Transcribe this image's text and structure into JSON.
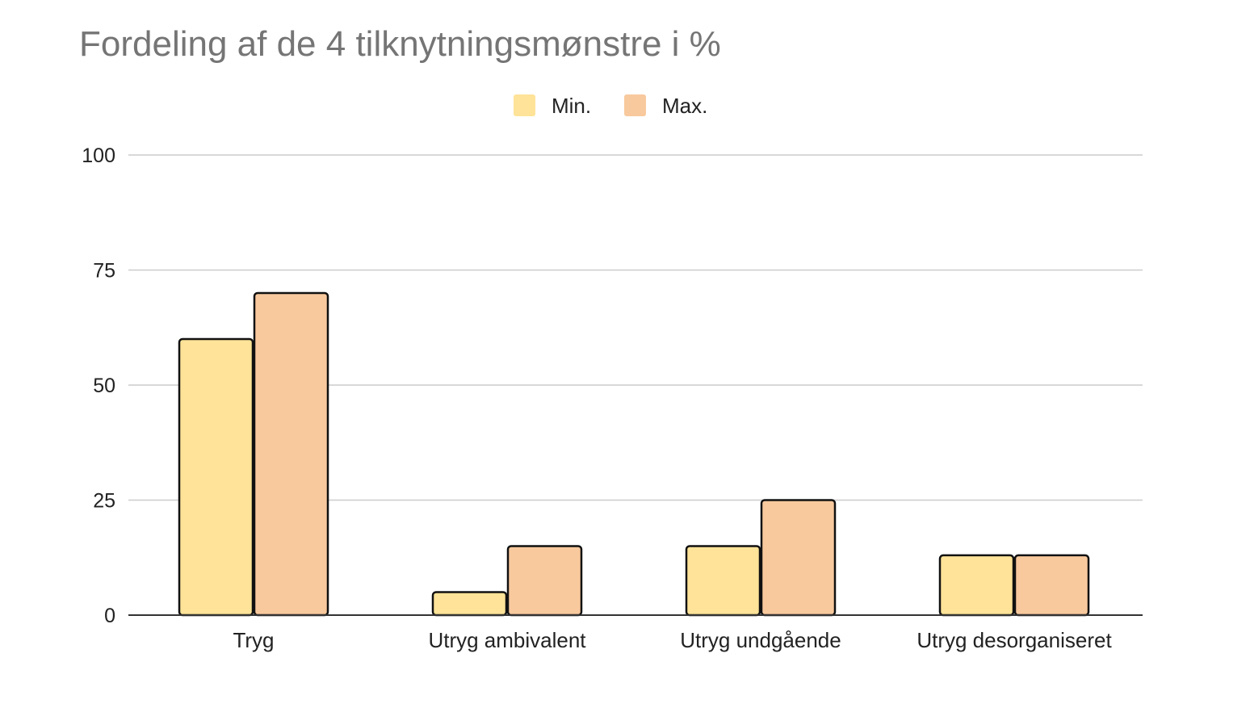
{
  "chart_data": {
    "type": "bar",
    "title": "Fordeling af de 4 tilknytningsmønstre i %",
    "xlabel": "",
    "ylabel": "",
    "categories": [
      "Tryg",
      "Utryg ambivalent",
      "Utryg undgående",
      "Utryg desorganiseret"
    ],
    "series": [
      {
        "name": "Min.",
        "values": [
          60,
          5,
          15,
          13
        ],
        "color": "#fee398"
      },
      {
        "name": "Max.",
        "values": [
          70,
          15,
          25,
          13
        ],
        "color": "#f8c99d"
      }
    ],
    "ylim": [
      0,
      100
    ],
    "yticks": [
      0,
      25,
      50,
      75,
      100
    ],
    "grid": true,
    "legend_position": "top-center"
  }
}
